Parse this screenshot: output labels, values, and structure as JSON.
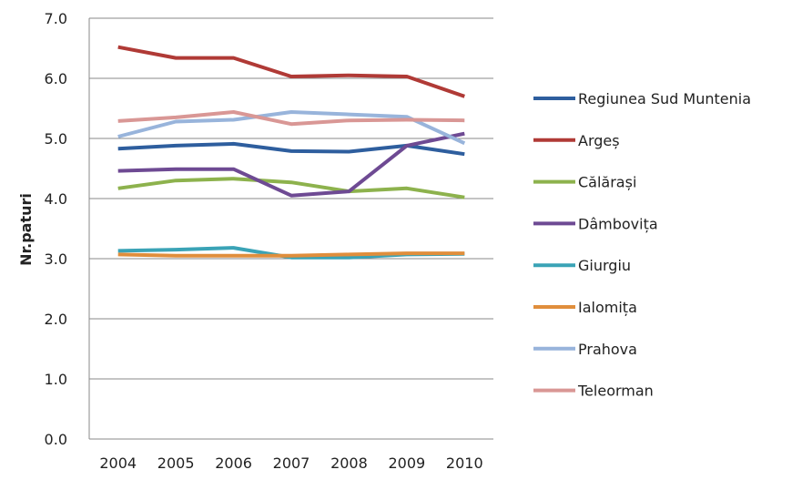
{
  "chart_data": {
    "type": "line",
    "title": "",
    "xlabel": "",
    "ylabel": "Nr.paturi",
    "ylim": [
      0,
      7
    ],
    "yticks": [
      "0.0",
      "1.0",
      "2.0",
      "3.0",
      "4.0",
      "5.0",
      "6.0",
      "7.0"
    ],
    "categories": [
      "2004",
      "2005",
      "2006",
      "2007",
      "2008",
      "2009",
      "2010"
    ],
    "grid": true,
    "legend_position": "right",
    "series": [
      {
        "name": "Regiunea Sud Muntenia",
        "color": "#2E5E9E",
        "values": [
          4.83,
          4.88,
          4.91,
          4.79,
          4.78,
          4.88,
          4.74
        ]
      },
      {
        "name": "Argeș",
        "color": "#B03A36",
        "values": [
          6.52,
          6.34,
          6.34,
          6.03,
          6.05,
          6.03,
          5.7
        ]
      },
      {
        "name": "Călărași",
        "color": "#8DB24D",
        "values": [
          4.17,
          4.3,
          4.33,
          4.27,
          4.12,
          4.17,
          4.02
        ]
      },
      {
        "name": "Dâmbovița",
        "color": "#6E4A93",
        "values": [
          4.46,
          4.49,
          4.49,
          4.05,
          4.12,
          4.88,
          5.08
        ]
      },
      {
        "name": "Giurgiu",
        "color": "#3AA3B6",
        "values": [
          3.13,
          3.15,
          3.18,
          3.02,
          3.02,
          3.07,
          3.08
        ]
      },
      {
        "name": "Ialomița",
        "color": "#E08E3C",
        "values": [
          3.07,
          3.05,
          3.05,
          3.05,
          3.07,
          3.09,
          3.09
        ]
      },
      {
        "name": "Prahova",
        "color": "#98B4DB",
        "values": [
          5.03,
          5.28,
          5.31,
          5.44,
          5.4,
          5.36,
          4.92
        ]
      },
      {
        "name": "Teleorman",
        "color": "#D99795",
        "values": [
          5.29,
          5.35,
          5.44,
          5.24,
          5.3,
          5.31,
          5.3
        ]
      }
    ]
  }
}
